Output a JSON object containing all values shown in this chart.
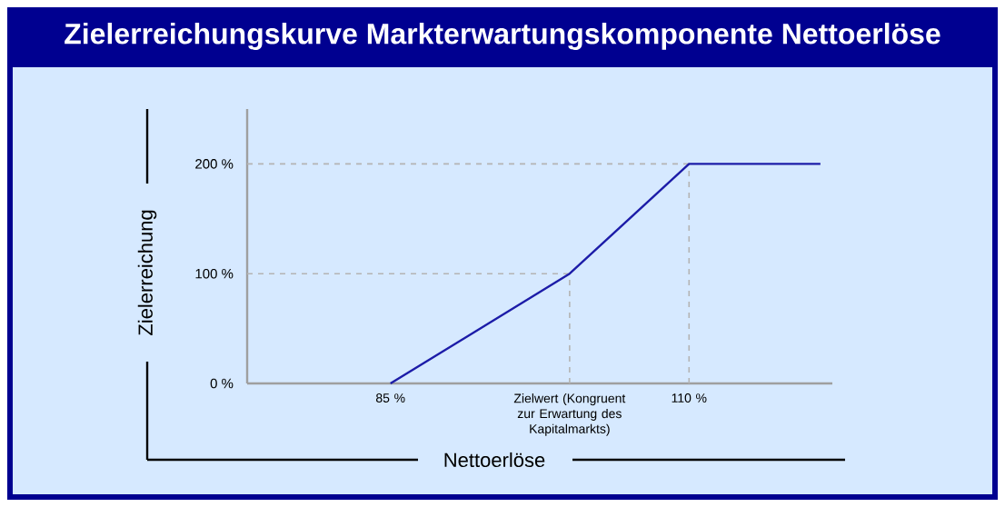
{
  "chart_data": {
    "type": "line",
    "title": "Zielerreichungskurve Markterwartungskomponente Nettoerlöse",
    "xlabel": "Nettoerlöse",
    "ylabel": "Zielerreichung",
    "x": [
      85,
      100,
      110,
      121
    ],
    "series": [
      {
        "color": "#1c1ca8",
        "values": [
          0,
          100,
          200,
          200
        ]
      }
    ],
    "xlim": [
      73,
      122
    ],
    "ylim": [
      0,
      250
    ],
    "xticks": [
      {
        "value": 85,
        "label": "85 %"
      },
      {
        "value": 100,
        "label": "Zielwert (Kongruent zur Erwartung des Kapitalmarkts)"
      },
      {
        "value": 110,
        "label": "110 %"
      }
    ],
    "yticks": [
      {
        "value": 0,
        "label": "0 %"
      },
      {
        "value": 100,
        "label": "100 %"
      },
      {
        "value": 200,
        "label": "200 %"
      }
    ],
    "ref_lines": [
      {
        "axis": "y",
        "value": 100,
        "color": "#b4b4b4",
        "line_style": "dashed"
      },
      {
        "axis": "y",
        "value": 200,
        "color": "#b4b4b4",
        "line_style": "dashed"
      },
      {
        "axis": "x",
        "value": 100,
        "color": "#b4b4b4",
        "line_style": "dashed"
      },
      {
        "axis": "x",
        "value": 110,
        "color": "#b4b4b4",
        "line_style": "dashed"
      }
    ],
    "grid": false,
    "marker": "none",
    "line_style": "solid"
  }
}
